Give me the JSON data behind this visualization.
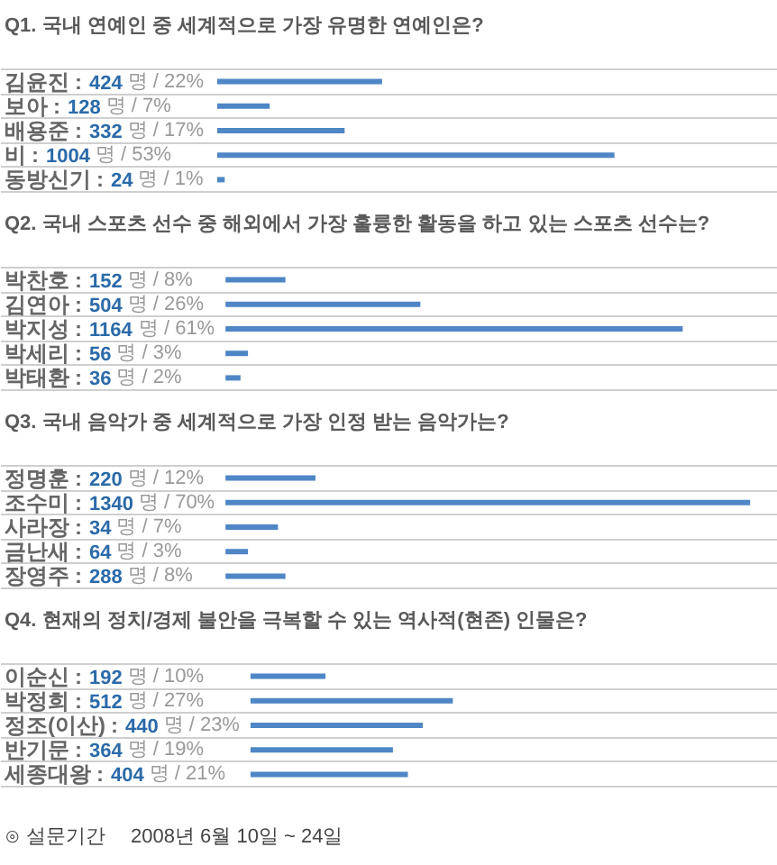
{
  "chart_data": [
    {
      "type": "bar",
      "orientation": "horizontal",
      "title": "Q1. 국내 연예인 중 세계적으로 가장 유명한 연예인은?",
      "categories": [
        "김윤진",
        "보아",
        "배용준",
        "비",
        "동방신기"
      ],
      "values": [
        22,
        7,
        17,
        53,
        1
      ],
      "value_labels": [
        "22%",
        "7%",
        "17%",
        "53%",
        "1%"
      ],
      "annotations": [
        ": 424 명 /",
        ": 128 명 /",
        ": 332 명 /",
        ": 1004 명 /",
        ": 24 명 /"
      ],
      "color": "#4f86c6",
      "grid": "y",
      "tick_labels": "y"
    },
    {
      "type": "bar",
      "orientation": "horizontal",
      "title": "Q2. 국내 스포츠 선수 중 해외에서 가장 훌륭한 활동을 하고 있는 스포츠 선수는?",
      "categories": [
        "박찬호",
        "김연아",
        "박지성",
        "박세리",
        "박태환"
      ],
      "values": [
        8,
        26,
        61,
        3,
        2
      ],
      "value_labels": [
        "8%",
        "26%",
        "61%",
        "3%",
        "2%"
      ],
      "annotations": [
        ": 152 명 /",
        ": 504 명 /",
        ": 1164 명 /",
        ": 56 명 /",
        ": 36 명 /"
      ],
      "color": "#4f86c6",
      "grid": "y",
      "tick_labels": "y"
    },
    {
      "type": "bar",
      "orientation": "horizontal",
      "title": "Q3. 국내 음악가 중 세계적으로 가장 인정 받는 음악가는?",
      "categories": [
        "정명훈",
        "조수미",
        "사라장",
        "금난새",
        "장영주"
      ],
      "values": [
        12,
        70,
        7,
        3,
        8
      ],
      "value_labels": [
        "12%",
        "70%",
        "7%",
        "3%",
        "8%"
      ],
      "annotations": [
        ": 220 명 /",
        ": 1340 명 /",
        ": 34 명 /",
        ": 64 명 /",
        ": 288 명 /"
      ],
      "color": "#4f86c6",
      "grid": "y",
      "tick_labels": "y"
    },
    {
      "type": "bar",
      "orientation": "horizontal",
      "title": "Q4. 현재의 정치/경제 불안을 극복할 수 있는 역사적(현존) 인물은?",
      "categories": [
        "이순신",
        "박정희",
        "정조(이산)",
        "반기문",
        "세종대왕"
      ],
      "values": [
        10,
        27,
        23,
        19,
        21
      ],
      "value_labels": [
        "10%",
        "27%",
        "23%",
        "19%",
        "21%"
      ],
      "annotations": [
        ": 192 명 /",
        ": 512 명 /",
        ": 440 명 /",
        ": 364 명 /",
        ": 404 명 /",
        "⊙ 설문기간",
        "2008년 6월 10일 ~ 24일"
      ],
      "color": "#4f86c6",
      "grid": "y",
      "tick_labels": "y"
    }
  ]
}
